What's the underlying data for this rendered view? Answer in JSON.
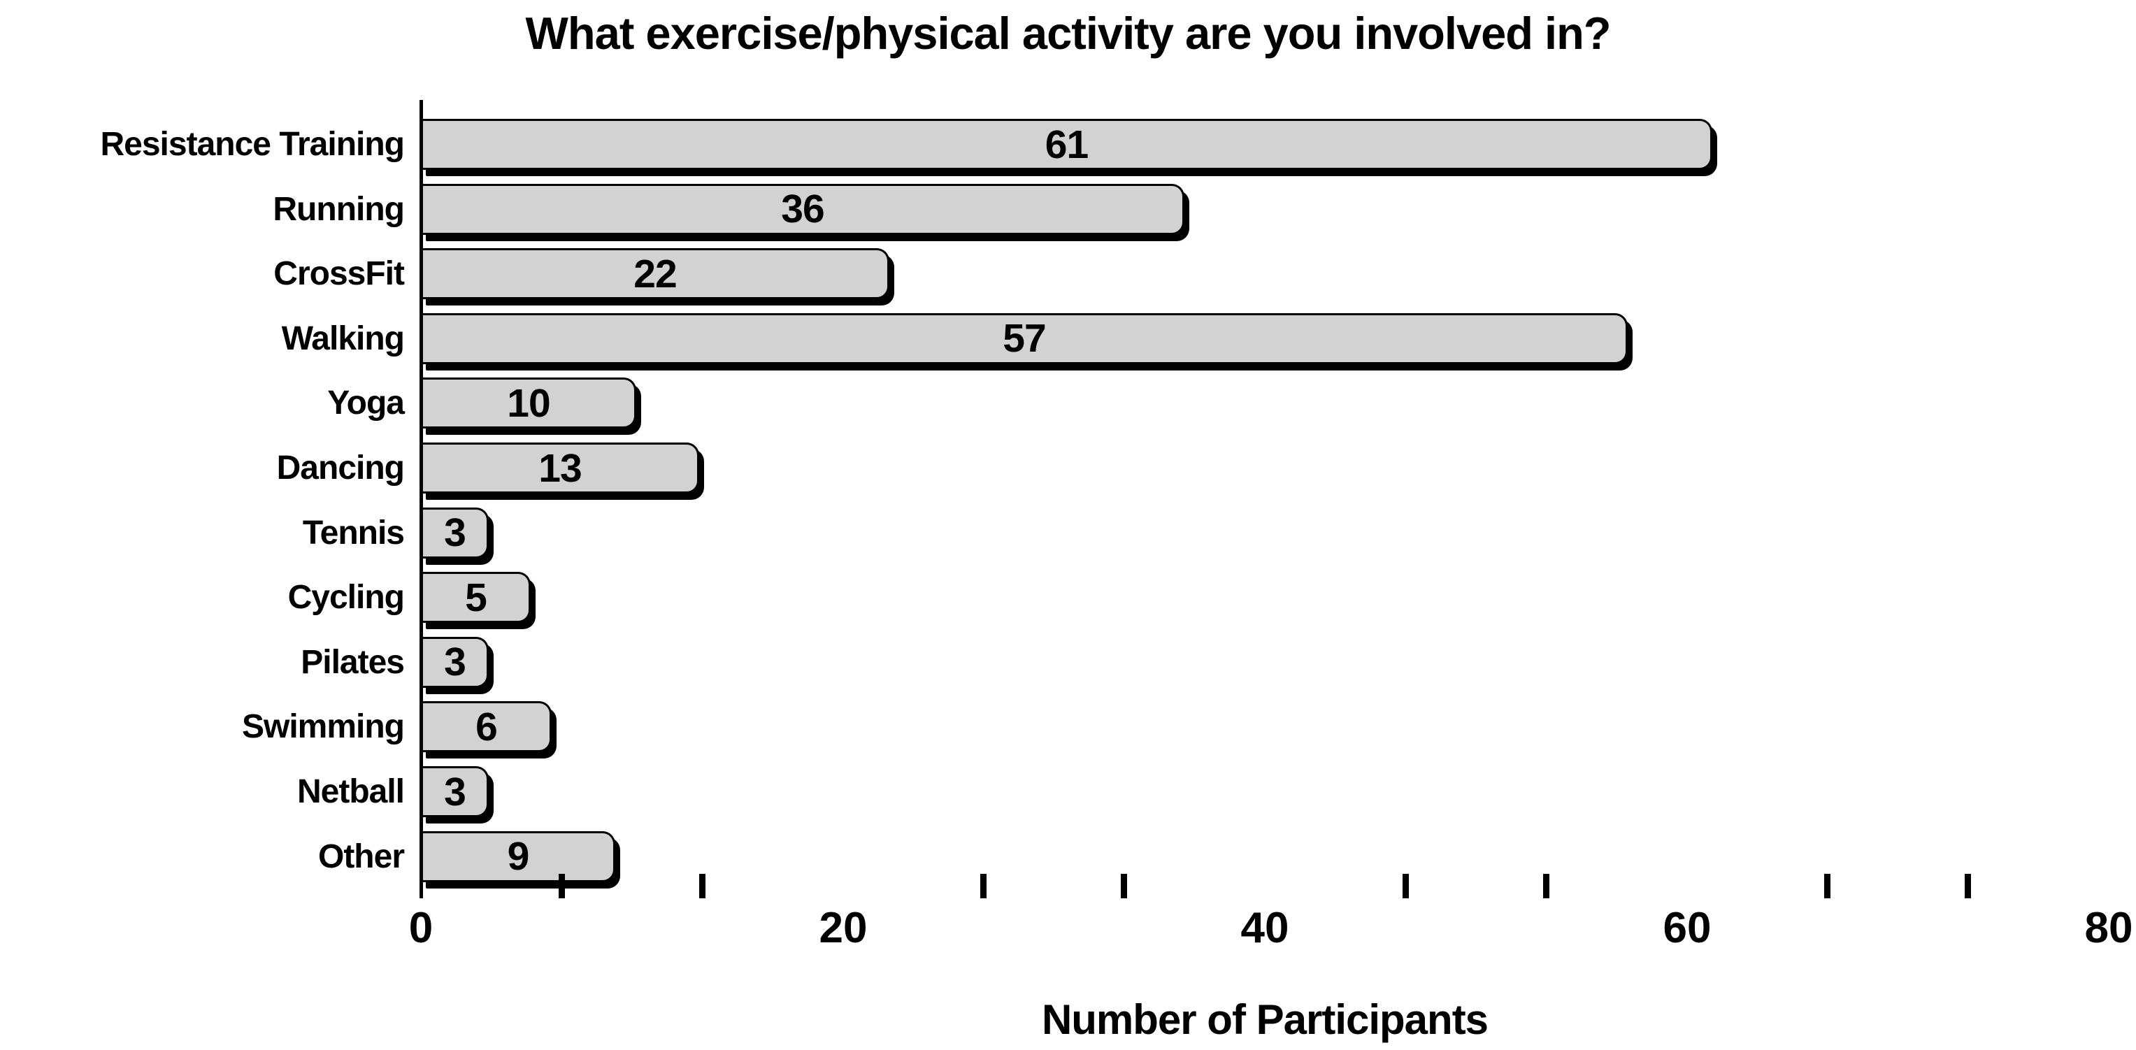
{
  "chart_data": {
    "type": "bar",
    "orientation": "horizontal",
    "title": "What exercise/physical activity are you involved in?",
    "xlabel": "Number of Participants",
    "ylabel": "",
    "categories": [
      "Resistance Training",
      "Running",
      "CrossFit",
      "Walking",
      "Yoga",
      "Dancing",
      "Tennis",
      "Cycling",
      "Pilates",
      "Swimming",
      "Netball",
      "Other"
    ],
    "values": [
      61,
      36,
      22,
      57,
      10,
      13,
      3,
      5,
      3,
      6,
      3,
      9
    ],
    "xlim": [
      0,
      80
    ],
    "x_major_ticks": [
      0,
      20,
      40,
      60,
      80
    ],
    "x_minor_ticks": [
      6.67,
      13.33,
      26.67,
      33.33,
      46.67,
      53.33,
      66.67,
      73.33
    ],
    "grid": false,
    "legend": "none",
    "bar_fill_color": "#d2d2d2",
    "bar_outline_color": "#000000",
    "text_color": "#000000",
    "background_color": "#ffffff"
  }
}
